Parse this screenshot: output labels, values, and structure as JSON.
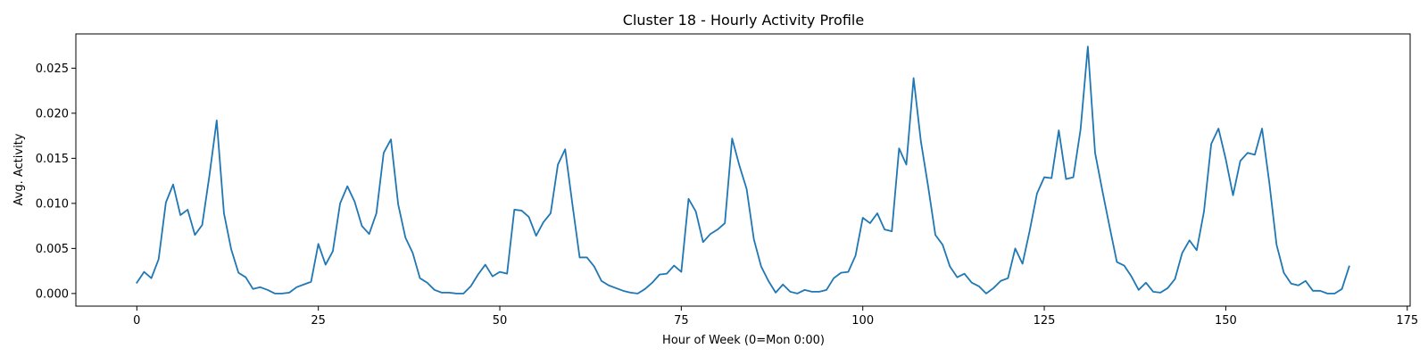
{
  "chart_data": {
    "type": "line",
    "title": "Cluster 18 - Hourly Activity Profile",
    "xlabel": "Hour of Week (0=Mon 0:00)",
    "ylabel": "Avg. Activity",
    "xlim": [
      -8.4,
      175.4
    ],
    "ylim": [
      -0.0014,
      0.0288
    ],
    "x_ticks": [
      0,
      25,
      50,
      75,
      100,
      125,
      150,
      175
    ],
    "y_ticks": [
      0.0,
      0.005,
      0.01,
      0.015,
      0.02,
      0.025
    ],
    "x_tick_labels": [
      "0",
      "25",
      "50",
      "75",
      "100",
      "125",
      "150",
      "175"
    ],
    "y_tick_labels": [
      "0.000",
      "0.005",
      "0.010",
      "0.015",
      "0.020",
      "0.025"
    ],
    "grid": false,
    "line_color": "#1f77b4",
    "series": [
      {
        "x_start": 0,
        "x_step": 1,
        "values": [
          0.0012,
          0.0024,
          0.0017,
          0.0038,
          0.0101,
          0.0121,
          0.0087,
          0.0093,
          0.0065,
          0.0076,
          0.0131,
          0.0192,
          0.0089,
          0.0049,
          0.0023,
          0.0018,
          0.0005,
          0.0007,
          0.0004,
          0.0,
          0.0,
          0.0001,
          0.0007,
          0.001,
          0.0013,
          0.0055,
          0.0032,
          0.0047,
          0.01,
          0.0119,
          0.0102,
          0.0075,
          0.0066,
          0.0089,
          0.0156,
          0.0171,
          0.0099,
          0.0062,
          0.0045,
          0.0017,
          0.0012,
          0.0004,
          0.0001,
          0.0001,
          0.0,
          0.0,
          0.0008,
          0.0021,
          0.0032,
          0.0019,
          0.0024,
          0.0022,
          0.0093,
          0.0092,
          0.0085,
          0.0064,
          0.0079,
          0.0089,
          0.0143,
          0.016,
          0.0099,
          0.004,
          0.004,
          0.003,
          0.0014,
          0.0009,
          0.0006,
          0.0003,
          0.0001,
          0.0,
          0.0005,
          0.0012,
          0.0021,
          0.0022,
          0.0031,
          0.0024,
          0.0105,
          0.0091,
          0.0057,
          0.0066,
          0.0071,
          0.0078,
          0.0172,
          0.0142,
          0.0116,
          0.006,
          0.003,
          0.0014,
          0.0001,
          0.001,
          0.0002,
          0.0,
          0.0004,
          0.0002,
          0.0002,
          0.0004,
          0.0017,
          0.0023,
          0.0024,
          0.0042,
          0.0084,
          0.0078,
          0.0089,
          0.0071,
          0.0069,
          0.0161,
          0.0143,
          0.0239,
          0.0169,
          0.0119,
          0.0065,
          0.0054,
          0.003,
          0.0018,
          0.0022,
          0.0012,
          0.0008,
          0.0,
          0.0006,
          0.0014,
          0.0017,
          0.005,
          0.0033,
          0.007,
          0.0111,
          0.0129,
          0.0128,
          0.0181,
          0.0127,
          0.0129,
          0.0182,
          0.0274,
          0.0156,
          0.0114,
          0.0074,
          0.0035,
          0.0031,
          0.0019,
          0.0004,
          0.0012,
          0.0002,
          0.0001,
          0.0006,
          0.0016,
          0.0045,
          0.0059,
          0.0048,
          0.0091,
          0.0166,
          0.0183,
          0.0149,
          0.0109,
          0.0147,
          0.0156,
          0.0154,
          0.0183,
          0.0123,
          0.0054,
          0.0023,
          0.0011,
          0.0009,
          0.0014,
          0.0003,
          0.0003,
          0.0,
          0.0,
          0.0005,
          0.003
        ]
      }
    ]
  }
}
